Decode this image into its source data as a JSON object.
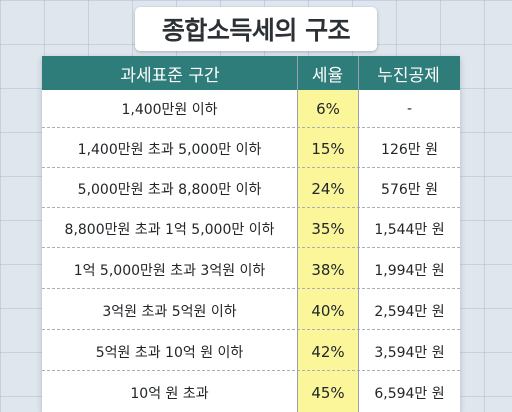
{
  "title": "종합소득세의 구조",
  "table": {
    "headers": [
      "과세표준 구간",
      "세율",
      "누진공제"
    ],
    "rows": [
      {
        "bracket": "1,400만원 이하",
        "rate": "6%",
        "deduction": "-"
      },
      {
        "bracket": "1,400만원 초과 5,000만 이하",
        "rate": "15%",
        "deduction": "126만 원"
      },
      {
        "bracket": "5,000만원 초과 8,800만 이하",
        "rate": "24%",
        "deduction": "576만 원"
      },
      {
        "bracket": "8,800만원 초과 1억 5,000만 이하",
        "rate": "35%",
        "deduction": "1,544만 원"
      },
      {
        "bracket": "1억 5,000만원 초과 3억원 이하",
        "rate": "38%",
        "deduction": "1,994만 원"
      },
      {
        "bracket": "3억원 초과 5억원 이하",
        "rate": "40%",
        "deduction": "2,594만 원"
      },
      {
        "bracket": "5억원 초과 10억 원 이하",
        "rate": "42%",
        "deduction": "3,594만 원"
      },
      {
        "bracket": "10억 원 초과",
        "rate": "45%",
        "deduction": "6,594만 원"
      }
    ]
  },
  "colors": {
    "header_bg": "#2f7d7b",
    "rate_highlight": "#fbf69a",
    "background": "#dfe6ee"
  }
}
